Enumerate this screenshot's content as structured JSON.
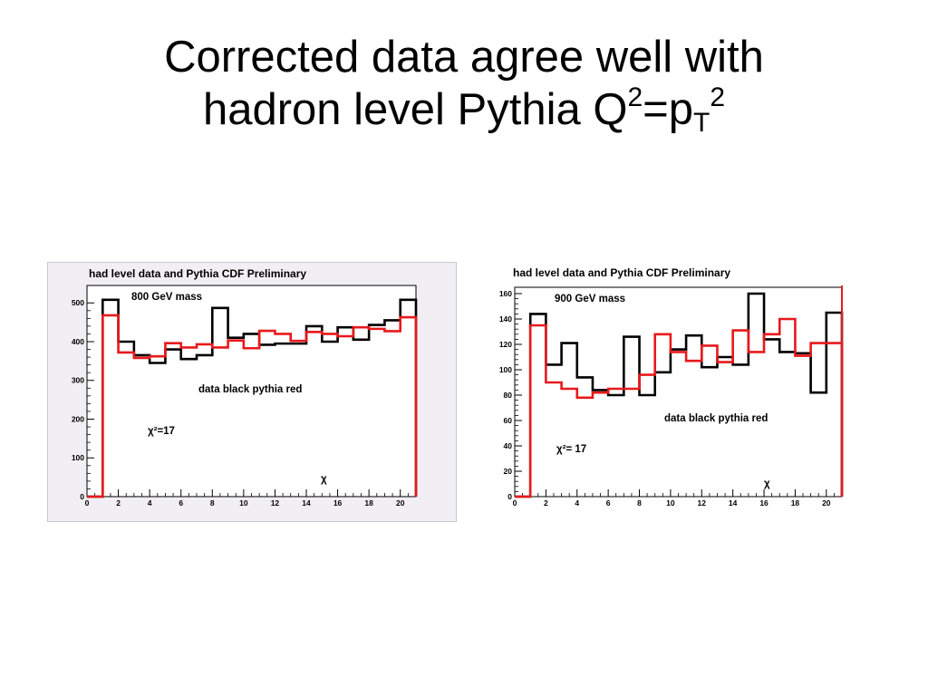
{
  "slide": {
    "title_line1": "Corrected data agree well with",
    "title_line2_prefix": "hadron level Pythia Q",
    "title_sup1": "2",
    "title_eq": "=p",
    "title_sub": "T",
    "title_sup2": "2"
  },
  "colors": {
    "data": "#000000",
    "pythia": "#e8191c",
    "frame": "#000000"
  },
  "chart_data": [
    {
      "type": "histogram",
      "title": "had level data and Pythia CDF Preliminary",
      "xlabel": "χ",
      "xlim": [
        0,
        21
      ],
      "ylim": [
        0,
        545
      ],
      "xticks": [
        0,
        2,
        4,
        6,
        8,
        10,
        12,
        14,
        16,
        18,
        20
      ],
      "yticks": [
        0,
        100,
        200,
        300,
        400,
        500
      ],
      "annotations": {
        "mass": "800 GeV mass",
        "legend": "data black pythia red",
        "chi2": "χ²=17"
      },
      "bin_edges": [
        0,
        1,
        2,
        3,
        4,
        5,
        6,
        7,
        8,
        9,
        10,
        11,
        12,
        13,
        14,
        15,
        16,
        17,
        18,
        19,
        20,
        21
      ],
      "series": [
        {
          "name": "data",
          "color": "#000000",
          "values": [
            0,
            508,
            400,
            365,
            345,
            380,
            355,
            365,
            487,
            410,
            420,
            392,
            395,
            395,
            440,
            400,
            437,
            405,
            443,
            455,
            508
          ]
        },
        {
          "name": "pythia",
          "color": "#e8191c",
          "values": [
            0,
            468,
            372,
            358,
            362,
            396,
            385,
            393,
            385,
            403,
            383,
            428,
            420,
            402,
            425,
            420,
            414,
            437,
            433,
            427,
            463
          ]
        }
      ]
    },
    {
      "type": "histogram",
      "title": "had level data and Pythia CDF Preliminary",
      "xlabel": "χ",
      "xlim": [
        0,
        21
      ],
      "ylim": [
        0,
        165
      ],
      "xticks": [
        0,
        2,
        4,
        6,
        8,
        10,
        12,
        14,
        16,
        18,
        20
      ],
      "yticks": [
        0,
        20,
        40,
        60,
        80,
        100,
        120,
        140,
        160
      ],
      "annotations": {
        "mass": "900 GeV mass",
        "legend": "data black pythia red",
        "chi2": "χ²= 17"
      },
      "bin_edges": [
        0,
        1,
        2,
        3,
        4,
        5,
        6,
        7,
        8,
        9,
        10,
        11,
        12,
        13,
        14,
        15,
        16,
        17,
        18,
        19,
        20,
        21
      ],
      "series": [
        {
          "name": "data",
          "color": "#000000",
          "values": [
            0,
            144,
            104,
            121,
            94,
            84,
            80,
            126,
            80,
            98,
            116,
            127,
            102,
            110,
            104,
            160,
            124,
            114,
            113,
            82,
            145
          ]
        },
        {
          "name": "pythia",
          "color": "#e8191c",
          "values": [
            0,
            135,
            90,
            85,
            78,
            82,
            85,
            85,
            96,
            128,
            114,
            107,
            119,
            106,
            131,
            114,
            128,
            140,
            111,
            121,
            121
          ]
        }
      ]
    }
  ]
}
